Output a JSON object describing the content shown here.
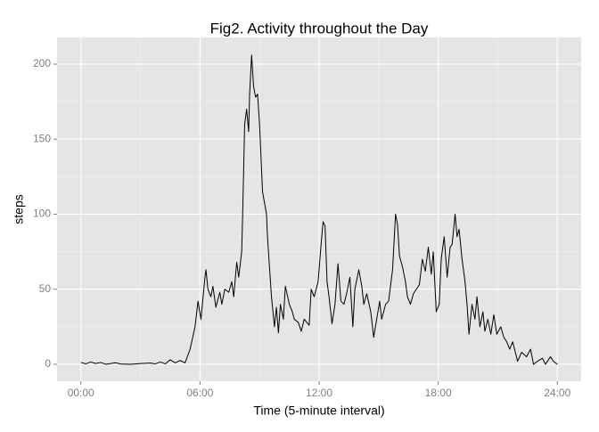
{
  "chart_data": {
    "type": "line",
    "title": "Fig2. Activity throughout the Day",
    "xlabel": "Time (5-minute interval)",
    "ylabel": "steps",
    "x": [
      0,
      0.25,
      0.5,
      0.75,
      1,
      1.25,
      1.5,
      1.75,
      2,
      2.5,
      3,
      3.5,
      3.75,
      4,
      4.25,
      4.5,
      4.75,
      5,
      5.25,
      5.5,
      5.75,
      5.9,
      6.05,
      6.25,
      6.3,
      6.4,
      6.55,
      6.65,
      6.8,
      7,
      7.1,
      7.25,
      7.45,
      7.6,
      7.7,
      7.85,
      7.95,
      8.1,
      8.15,
      8.25,
      8.35,
      8.45,
      8.5,
      8.6,
      8.7,
      8.8,
      8.9,
      9,
      9.15,
      9.35,
      9.4,
      9.6,
      9.75,
      9.85,
      9.95,
      10.05,
      10.2,
      10.3,
      10.5,
      10.65,
      10.75,
      10.95,
      11.1,
      11.25,
      11.5,
      11.6,
      11.75,
      11.95,
      12.1,
      12.2,
      12.3,
      12.4,
      12.5,
      12.65,
      12.8,
      12.95,
      13.1,
      13.25,
      13.4,
      13.55,
      13.7,
      13.8,
      14,
      14.15,
      14.25,
      14.4,
      14.6,
      14.75,
      14.9,
      15.05,
      15.15,
      15.35,
      15.5,
      15.7,
      15.85,
      15.95,
      16.05,
      16.2,
      16.35,
      16.45,
      16.6,
      16.75,
      16.9,
      17.05,
      17.2,
      17.35,
      17.5,
      17.65,
      17.75,
      17.9,
      18.05,
      18.15,
      18.3,
      18.45,
      18.6,
      18.7,
      18.85,
      18.95,
      19.05,
      19.2,
      19.35,
      19.45,
      19.55,
      19.7,
      19.85,
      19.95,
      20.1,
      20.25,
      20.35,
      20.5,
      20.65,
      20.8,
      20.95,
      21.15,
      21.3,
      21.45,
      21.6,
      21.75,
      22,
      22.2,
      22.45,
      22.65,
      22.8,
      23,
      23.25,
      23.4,
      23.65,
      23.8,
      24
    ],
    "series": [
      {
        "color": "#000000",
        "values": [
          1.2,
          0.3,
          1.5,
          0.5,
          1.2,
          0,
          0.5,
          1,
          0.2,
          0,
          0.5,
          0.8,
          0.3,
          1.5,
          0.3,
          3,
          1,
          2.5,
          1,
          10,
          25,
          42,
          30,
          58,
          63,
          50,
          45,
          52,
          38,
          48,
          40,
          50,
          48,
          55,
          45,
          68,
          58,
          75,
          100,
          160,
          170,
          155,
          180,
          206,
          185,
          178,
          180,
          160,
          115,
          100,
          85,
          45,
          25,
          38,
          21,
          40,
          30,
          52,
          40,
          35,
          30,
          28,
          22,
          30,
          26,
          50,
          45,
          55,
          80,
          95,
          92,
          55,
          45,
          27,
          40,
          67,
          42,
          40,
          48,
          58,
          25,
          50,
          63,
          52,
          40,
          47,
          35,
          18,
          30,
          42,
          30,
          40,
          42,
          63,
          100,
          93,
          72,
          65,
          55,
          45,
          40,
          47,
          50,
          53,
          70,
          62,
          78,
          60,
          75,
          35,
          40,
          70,
          85,
          58,
          78,
          80,
          100,
          85,
          90,
          70,
          55,
          40,
          20,
          40,
          30,
          45,
          25,
          35,
          22,
          30,
          20,
          33,
          20,
          25,
          18,
          15,
          10,
          15,
          2,
          8,
          5,
          10,
          0,
          2,
          4,
          0,
          5,
          2,
          0
        ]
      }
    ],
    "xlim": [
      -1.2,
      25.2
    ],
    "xticks": [
      {
        "value": 0,
        "label": "00:00"
      },
      {
        "value": 6,
        "label": "06:00"
      },
      {
        "value": 12,
        "label": "12:00"
      },
      {
        "value": 18,
        "label": "18:00"
      },
      {
        "value": 24,
        "label": "24:00"
      }
    ],
    "ylim": [
      -11.3,
      217.8
    ],
    "yticks": [
      0,
      50,
      100,
      150,
      200
    ],
    "grid": true
  }
}
